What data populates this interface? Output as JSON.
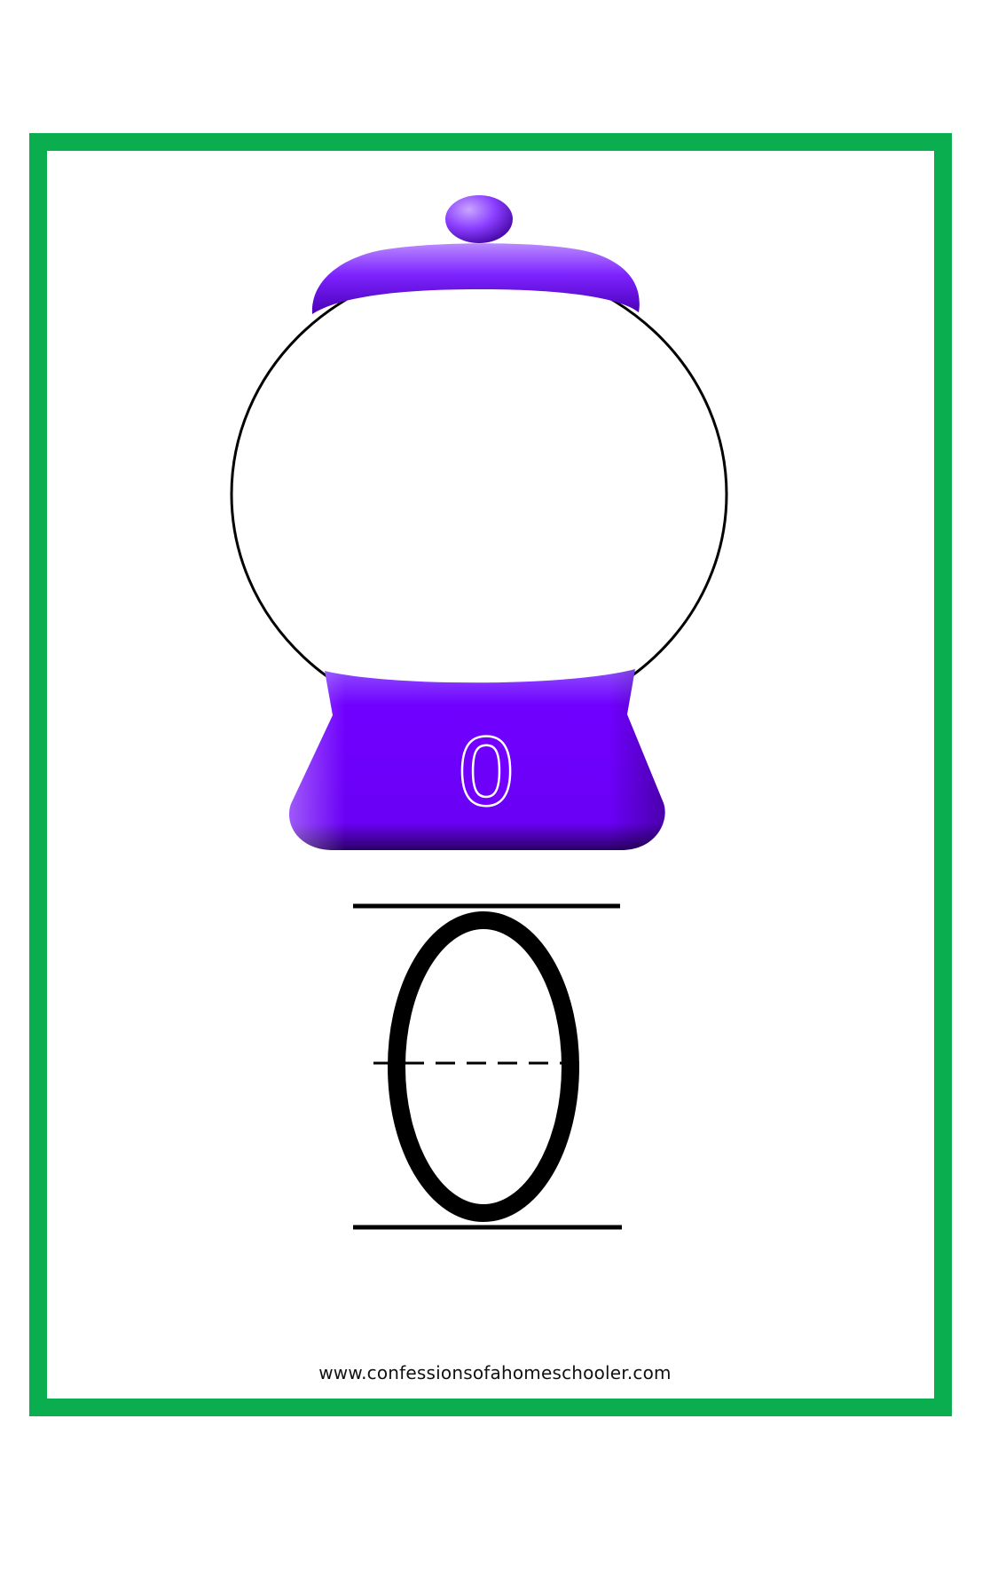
{
  "page": {
    "accent_color": "#0aae4e",
    "machine_color": "#7300ff"
  },
  "gumball_machine": {
    "icon": "gumball-machine-icon",
    "base_number": "0"
  },
  "tracing": {
    "numeral": "0"
  },
  "footer": {
    "url": "www.confessionsofahomeschooler.com"
  }
}
